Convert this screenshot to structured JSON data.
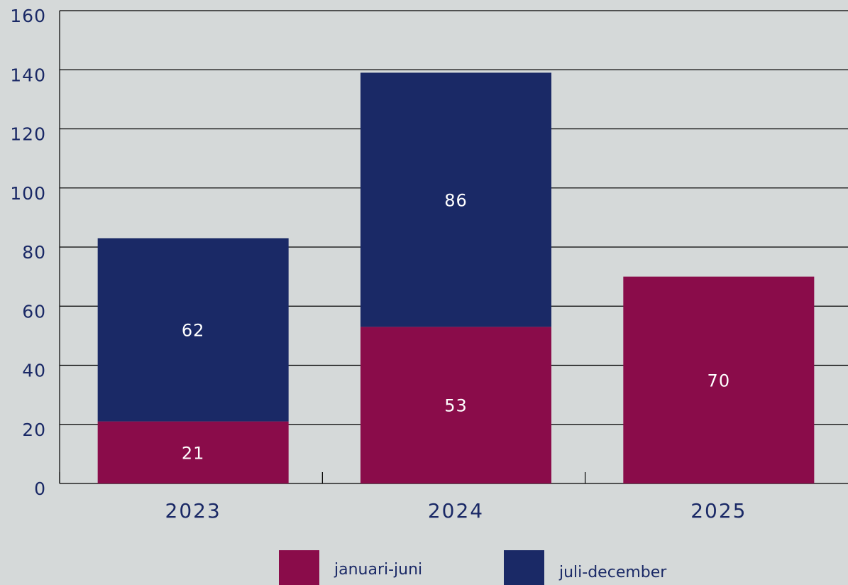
{
  "chart_data": {
    "type": "stacked_bar",
    "categories": [
      "2023",
      "2024",
      "2025"
    ],
    "series": [
      {
        "name": "januari-juni",
        "color": "#8a0c4a",
        "values": [
          21,
          53,
          70
        ]
      },
      {
        "name": "juli-december",
        "color": "#1a2966",
        "values": [
          62,
          86,
          null
        ]
      }
    ],
    "ylim": [
      0,
      160
    ],
    "yticks": [
      0,
      20,
      40,
      60,
      80,
      100,
      120,
      140,
      160
    ],
    "grid": true
  }
}
